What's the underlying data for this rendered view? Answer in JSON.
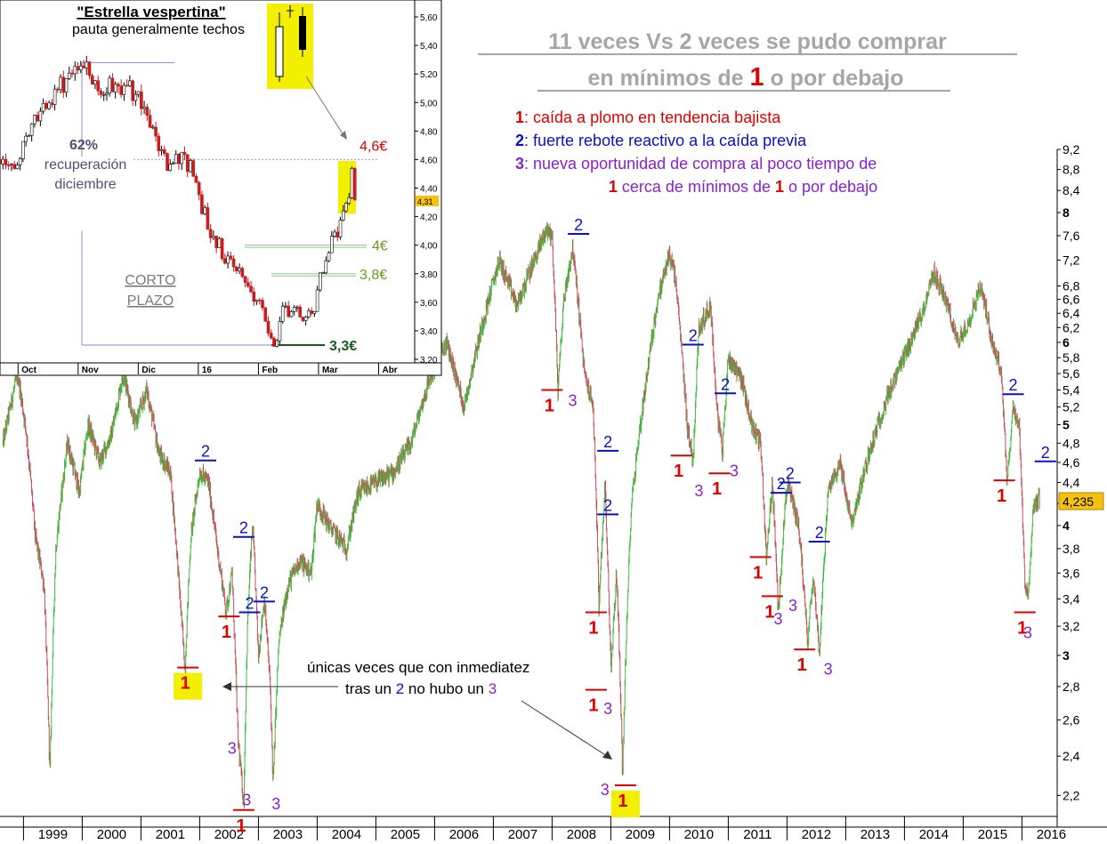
{
  "title": {
    "line1": "11 veces Vs 2 veces se pudo comprar",
    "line2_pre": "en mínimos de ",
    "line2_num": "1",
    "line2_post": " o por debajo"
  },
  "legend": {
    "item1_num": "1",
    "item1_text": ": caída a plomo en tendencia bajista",
    "item2_num": "2",
    "item2_text": ": fuerte rebote reactivo a la caída previa",
    "item3_num": "3",
    "item3_text": ": nueva oportunidad de compra al poco tiempo de",
    "item3b_num1": "1",
    "item3b_text1": " cerca de mínimos de ",
    "item3b_num2": "1",
    "item3b_text2": " o por debajo"
  },
  "callout": {
    "line1": "únicas veces que con inmediatez",
    "line2_pre": "tras un ",
    "line2_num2": "2",
    "line2_mid": " no hubo un ",
    "line2_num3": "3"
  },
  "current_price_label": "4,235",
  "colors": {
    "up": "#3cbf3c",
    "down": "#c8505a",
    "red": "#e00000",
    "blue": "#0a10c8",
    "purple": "#8a22cc",
    "highlight": "#f2f000",
    "title_gray": "#a6a6a6"
  },
  "chart_data": [
    {
      "type": "candlestick",
      "name": "main",
      "scale": "log",
      "ylim": [
        2.1,
        9.2
      ],
      "xlim": [
        1998.6,
        2016.6
      ],
      "x_ticks": [
        "1999",
        "2000",
        "2001",
        "2002",
        "2003",
        "2004",
        "2005",
        "2006",
        "2007",
        "2008",
        "2009",
        "2010",
        "2011",
        "2012",
        "2013",
        "2014",
        "2015",
        "2016"
      ],
      "y_ticks": [
        "9,2",
        "8,8",
        "8,4",
        "8",
        "7,6",
        "7,2",
        "6,8",
        "6,6",
        "6,4",
        "6,2",
        "6",
        "5,8",
        "5,6",
        "5,4",
        "5,2",
        "5",
        "4,8",
        "4,6",
        "4,4",
        "4,2",
        "4",
        "3,8",
        "3,6",
        "3,4",
        "3,2",
        "3",
        "2,8",
        "2,6",
        "2,4",
        "2,2"
      ],
      "y_tick_values": [
        9.2,
        8.8,
        8.4,
        8,
        7.6,
        7.2,
        6.8,
        6.6,
        6.4,
        6.2,
        6,
        5.8,
        5.6,
        5.4,
        5.2,
        5,
        4.8,
        4.6,
        4.4,
        4.2,
        4,
        3.8,
        3.6,
        3.4,
        3.2,
        3,
        2.8,
        2.6,
        2.4,
        2.2
      ],
      "path": [
        [
          1998.65,
          4.8
        ],
        [
          1998.9,
          5.6
        ],
        [
          1999.05,
          4.9
        ],
        [
          1999.2,
          3.9
        ],
        [
          1999.35,
          3.5
        ],
        [
          1999.45,
          2.3
        ],
        [
          1999.55,
          3.8
        ],
        [
          1999.75,
          4.8
        ],
        [
          1999.95,
          4.3
        ],
        [
          2000.1,
          5.0
        ],
        [
          2000.3,
          4.6
        ],
        [
          2000.5,
          4.9
        ],
        [
          2000.7,
          5.6
        ],
        [
          2000.9,
          5.0
        ],
        [
          2001.1,
          5.4
        ],
        [
          2001.3,
          4.7
        ],
        [
          2001.5,
          4.5
        ],
        [
          2001.65,
          3.5
        ],
        [
          2001.75,
          2.9
        ],
        [
          2001.85,
          3.9
        ],
        [
          2002.0,
          4.5
        ],
        [
          2002.15,
          4.4
        ],
        [
          2002.3,
          3.8
        ],
        [
          2002.45,
          3.3
        ],
        [
          2002.55,
          3.6
        ],
        [
          2002.65,
          2.5
        ],
        [
          2002.75,
          2.15
        ],
        [
          2002.82,
          3.3
        ],
        [
          2002.9,
          4.0
        ],
        [
          2003.0,
          3.0
        ],
        [
          2003.1,
          3.4
        ],
        [
          2003.2,
          2.8
        ],
        [
          2003.25,
          2.25
        ],
        [
          2003.35,
          3.1
        ],
        [
          2003.5,
          3.5
        ],
        [
          2003.7,
          3.7
        ],
        [
          2003.9,
          3.6
        ],
        [
          2004.0,
          4.2
        ],
        [
          2004.2,
          4.0
        ],
        [
          2004.5,
          3.8
        ],
        [
          2004.7,
          4.3
        ],
        [
          2005.0,
          4.4
        ],
        [
          2005.3,
          4.5
        ],
        [
          2005.6,
          4.8
        ],
        [
          2005.9,
          5.5
        ],
        [
          2006.2,
          6.0
        ],
        [
          2006.5,
          5.2
        ],
        [
          2006.8,
          6.2
        ],
        [
          2007.1,
          7.2
        ],
        [
          2007.4,
          6.5
        ],
        [
          2007.7,
          7.2
        ],
        [
          2007.9,
          7.7
        ],
        [
          2008.0,
          7.6
        ],
        [
          2008.1,
          5.4
        ],
        [
          2008.2,
          6.6
        ],
        [
          2008.35,
          7.4
        ],
        [
          2008.45,
          6.5
        ],
        [
          2008.55,
          5.6
        ],
        [
          2008.7,
          5.2
        ],
        [
          2008.8,
          3.3
        ],
        [
          2008.9,
          4.4
        ],
        [
          2009.0,
          2.9
        ],
        [
          2009.1,
          3.6
        ],
        [
          2009.2,
          2.3
        ],
        [
          2009.35,
          4.2
        ],
        [
          2009.6,
          5.5
        ],
        [
          2009.8,
          6.6
        ],
        [
          2010.0,
          7.3
        ],
        [
          2010.1,
          6.9
        ],
        [
          2010.3,
          5.0
        ],
        [
          2010.4,
          4.6
        ],
        [
          2010.5,
          6.2
        ],
        [
          2010.7,
          6.5
        ],
        [
          2010.8,
          5.2
        ],
        [
          2010.9,
          4.7
        ],
        [
          2011.0,
          5.8
        ],
        [
          2011.2,
          5.6
        ],
        [
          2011.4,
          5.0
        ],
        [
          2011.55,
          4.8
        ],
        [
          2011.65,
          3.7
        ],
        [
          2011.75,
          4.4
        ],
        [
          2011.85,
          3.3
        ],
        [
          2012.0,
          4.4
        ],
        [
          2012.2,
          4.0
        ],
        [
          2012.35,
          3.1
        ],
        [
          2012.45,
          3.6
        ],
        [
          2012.55,
          3.0
        ],
        [
          2012.7,
          4.3
        ],
        [
          2012.9,
          4.6
        ],
        [
          2013.1,
          4.0
        ],
        [
          2013.4,
          4.7
        ],
        [
          2013.7,
          5.3
        ],
        [
          2014.0,
          5.8
        ],
        [
          2014.3,
          6.4
        ],
        [
          2014.5,
          7.0
        ],
        [
          2014.7,
          6.6
        ],
        [
          2014.9,
          6.0
        ],
        [
          2015.1,
          6.3
        ],
        [
          2015.3,
          6.8
        ],
        [
          2015.5,
          6.0
        ],
        [
          2015.65,
          5.6
        ],
        [
          2015.75,
          4.4
        ],
        [
          2015.85,
          5.2
        ],
        [
          2015.95,
          5.0
        ],
        [
          2016.05,
          3.5
        ],
        [
          2016.1,
          3.4
        ],
        [
          2016.2,
          4.2
        ],
        [
          2016.3,
          4.235
        ]
      ],
      "current_price": 4.235,
      "markers": [
        {
          "label": "1",
          "color": "red",
          "x": 2001.8,
          "y": 2.92,
          "highlight": true
        },
        {
          "label": "2",
          "color": "blue",
          "x": 2002.1,
          "y": 4.62
        },
        {
          "label": "2",
          "color": "blue",
          "x": 2002.75,
          "y": 3.9
        },
        {
          "label": "1",
          "color": "red",
          "x": 2002.5,
          "y": 3.27
        },
        {
          "label": "2",
          "color": "blue",
          "x": 2002.85,
          "y": 3.3
        },
        {
          "label": "2",
          "color": "blue",
          "x": 2003.1,
          "y": 3.38
        },
        {
          "label": "3",
          "color": "purple",
          "x": 2002.55,
          "y": 2.5
        },
        {
          "label": "3",
          "color": "purple",
          "x": 2002.8,
          "y": 2.23
        },
        {
          "label": "3",
          "color": "purple",
          "x": 2003.3,
          "y": 2.21
        },
        {
          "label": "1",
          "color": "red",
          "x": 2002.75,
          "y": 2.13
        },
        {
          "label": "1",
          "color": "red",
          "x": 2008.0,
          "y": 5.4
        },
        {
          "label": "3",
          "color": "purple",
          "x": 2008.35,
          "y": 5.4
        },
        {
          "label": "2",
          "color": "blue",
          "x": 2008.45,
          "y": 7.63
        },
        {
          "label": "2",
          "color": "blue",
          "x": 2008.95,
          "y": 4.72
        },
        {
          "label": "2",
          "color": "blue",
          "x": 2008.95,
          "y": 4.1
        },
        {
          "label": "1",
          "color": "red",
          "x": 2008.75,
          "y": 3.3
        },
        {
          "label": "1",
          "color": "red",
          "x": 2008.75,
          "y": 2.78
        },
        {
          "label": "3",
          "color": "purple",
          "x": 2008.95,
          "y": 2.73
        },
        {
          "label": "1",
          "color": "red",
          "x": 2009.25,
          "y": 2.25,
          "highlight": true
        },
        {
          "label": "3",
          "color": "purple",
          "x": 2008.9,
          "y": 2.28
        },
        {
          "label": "2",
          "color": "blue",
          "x": 2010.4,
          "y": 5.97
        },
        {
          "label": "1",
          "color": "red",
          "x": 2010.2,
          "y": 4.67
        },
        {
          "label": "3",
          "color": "purple",
          "x": 2010.5,
          "y": 4.42
        },
        {
          "label": "2",
          "color": "blue",
          "x": 2010.95,
          "y": 5.36
        },
        {
          "label": "1",
          "color": "red",
          "x": 2010.85,
          "y": 4.49
        },
        {
          "label": "3",
          "color": "purple",
          "x": 2011.1,
          "y": 4.62
        },
        {
          "label": "2",
          "color": "blue",
          "x": 2011.9,
          "y": 4.3
        },
        {
          "label": "2",
          "color": "blue",
          "x": 2012.05,
          "y": 4.4
        },
        {
          "label": "1",
          "color": "red",
          "x": 2011.55,
          "y": 3.73
        },
        {
          "label": "1",
          "color": "red",
          "x": 2011.75,
          "y": 3.42
        },
        {
          "label": "3",
          "color": "purple",
          "x": 2011.85,
          "y": 3.33
        },
        {
          "label": "3",
          "color": "purple",
          "x": 2012.1,
          "y": 3.43
        },
        {
          "label": "2",
          "color": "blue",
          "x": 2012.55,
          "y": 3.86
        },
        {
          "label": "1",
          "color": "red",
          "x": 2012.3,
          "y": 3.04
        },
        {
          "label": "3",
          "color": "purple",
          "x": 2012.7,
          "y": 2.98
        },
        {
          "label": "1",
          "color": "red",
          "x": 2015.7,
          "y": 4.42
        },
        {
          "label": "2",
          "color": "blue",
          "x": 2015.85,
          "y": 5.35
        },
        {
          "label": "2",
          "color": "blue",
          "x": 2016.4,
          "y": 4.61
        },
        {
          "label": "1",
          "color": "red",
          "x": 2016.05,
          "y": 3.3
        },
        {
          "label": "3",
          "color": "purple",
          "x": 2016.1,
          "y": 3.23
        }
      ]
    },
    {
      "type": "candlestick",
      "name": "inset",
      "title": "\"Estrella vespertina\"",
      "subtitle": "pauta generalmente techos",
      "ylim": [
        3.2,
        5.6
      ],
      "y_ticks": [
        "5,60",
        "5,40",
        "5,20",
        "5,00",
        "4,80",
        "4,60",
        "4,40",
        "4,20",
        "4,00",
        "3,80",
        "3,60",
        "3,40",
        "3,20"
      ],
      "y_tick_values": [
        5.6,
        5.4,
        5.2,
        5.0,
        4.8,
        4.6,
        4.4,
        4.2,
        4.0,
        3.8,
        3.6,
        3.4,
        3.2
      ],
      "x_ticks": [
        "Oct",
        "Nov",
        "Dic",
        "16",
        "Feb",
        "Mar",
        "Abr"
      ],
      "x_tick_pos": [
        0.0,
        1.0,
        2.0,
        3.0,
        4.0,
        5.0,
        6.0
      ],
      "xlim": [
        -0.3,
        6.6
      ],
      "path": [
        [
          -0.3,
          4.6
        ],
        [
          -0.1,
          4.5
        ],
        [
          0.1,
          4.7
        ],
        [
          0.3,
          4.9
        ],
        [
          0.5,
          5.0
        ],
        [
          0.7,
          5.1
        ],
        [
          0.9,
          5.25
        ],
        [
          1.0,
          5.3
        ],
        [
          1.2,
          5.2
        ],
        [
          1.4,
          5.05
        ],
        [
          1.6,
          5.15
        ],
        [
          1.8,
          5.1
        ],
        [
          2.0,
          5.05
        ],
        [
          2.1,
          4.9
        ],
        [
          2.3,
          4.75
        ],
        [
          2.5,
          4.55
        ],
        [
          2.7,
          4.6
        ],
        [
          2.9,
          4.55
        ],
        [
          3.0,
          4.35
        ],
        [
          3.2,
          4.1
        ],
        [
          3.4,
          3.95
        ],
        [
          3.6,
          3.85
        ],
        [
          3.8,
          3.75
        ],
        [
          4.0,
          3.6
        ],
        [
          4.15,
          3.4
        ],
        [
          4.3,
          3.32
        ],
        [
          4.4,
          3.55
        ],
        [
          4.6,
          3.55
        ],
        [
          4.8,
          3.5
        ],
        [
          4.95,
          3.6
        ],
        [
          5.1,
          3.9
        ],
        [
          5.3,
          4.1
        ],
        [
          5.45,
          4.25
        ],
        [
          5.55,
          4.5
        ],
        [
          5.62,
          4.31
        ]
      ],
      "current_price_label": "4,31",
      "annotations": [
        {
          "text": "4,6€",
          "color": "red",
          "y": 4.6
        },
        {
          "text": "4€",
          "color": "olive",
          "y": 4.0
        },
        {
          "text": "3,8€",
          "color": "olive",
          "y": 3.8
        },
        {
          "text": "3,3€",
          "color": "darkgreen",
          "y": 3.3
        }
      ],
      "retracement_label": "62%",
      "retracement_text1": "recuperación",
      "retracement_text2": "diciembre",
      "period_label1": "CORTO",
      "period_label2": "PLAZO"
    }
  ]
}
